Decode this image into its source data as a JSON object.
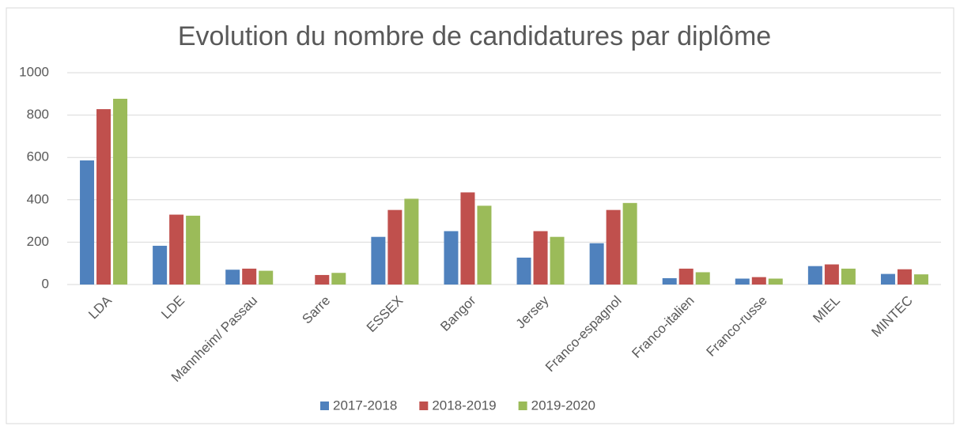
{
  "chart_data": {
    "type": "bar",
    "title": "Evolution du nombre de candidatures par diplôme",
    "categories": [
      "LDA",
      "LDE",
      "Mannheim/ Passau",
      "Sarre",
      "ESSEX",
      "Bangor",
      "Jersey",
      "Franco-espagnol",
      "Franco-italien",
      "Franco-russe",
      "MIEL",
      "MINTEC"
    ],
    "series": [
      {
        "name": "2017-2018",
        "color": "#4f81bd",
        "values": [
          586,
          183,
          70,
          0,
          225,
          252,
          127,
          195,
          30,
          28,
          87,
          50
        ]
      },
      {
        "name": "2018-2019",
        "color": "#c0504d",
        "values": [
          828,
          330,
          75,
          45,
          352,
          435,
          252,
          352,
          75,
          35,
          95,
          72
        ]
      },
      {
        "name": "2019-2020",
        "color": "#9bbb59",
        "values": [
          877,
          325,
          65,
          55,
          405,
          372,
          225,
          385,
          58,
          28,
          75,
          48
        ]
      }
    ],
    "ylim": [
      0,
      1000
    ],
    "yticks": [
      0,
      200,
      400,
      600,
      800,
      1000
    ],
    "grid": true,
    "legend": "bottom"
  }
}
